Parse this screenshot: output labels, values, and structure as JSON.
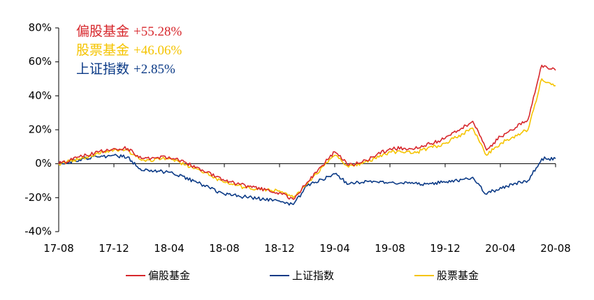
{
  "chart_data": {
    "type": "line",
    "x_ticks": [
      "17-08",
      "17-12",
      "18-04",
      "18-08",
      "18-12",
      "19-04",
      "19-08",
      "19-12",
      "20-04",
      "20-08"
    ],
    "y_ticks": [
      "80%",
      "60%",
      "40%",
      "20%",
      "0%",
      "-20%",
      "-40%"
    ],
    "ylim": [
      -40,
      80
    ],
    "y_unit": "%",
    "x": [
      "17-08",
      "17-10",
      "17-12",
      "18-01",
      "18-02",
      "18-04",
      "18-06",
      "18-08",
      "18-10",
      "18-12",
      "19-01",
      "19-02",
      "19-04",
      "19-05",
      "19-06",
      "19-08",
      "19-10",
      "19-12",
      "20-02",
      "20-03",
      "20-04",
      "20-06",
      "20-07",
      "20-08"
    ],
    "series": [
      {
        "name": "偏股基金",
        "color": "#d7282d",
        "values": [
          0,
          5,
          9,
          9,
          3,
          4,
          -2,
          -10,
          -14,
          -17,
          -21,
          -11,
          7,
          -1,
          1,
          9,
          9,
          15,
          25,
          8,
          16,
          26,
          58,
          55
        ]
      },
      {
        "name": "上证指数",
        "color": "#0b3a86",
        "values": [
          0,
          3,
          5,
          4,
          -4,
          -5,
          -11,
          -18,
          -20,
          -22,
          -24,
          -13,
          -6,
          -12,
          -11,
          -11,
          -12,
          -11,
          -8,
          -18,
          -14,
          -10,
          3,
          3
        ]
      },
      {
        "name": "股票基金",
        "color": "#f5c400",
        "values": [
          0,
          4,
          8,
          8,
          2,
          3,
          -3,
          -11,
          -15,
          -16,
          -20,
          -12,
          5,
          -2,
          0,
          7,
          7,
          12,
          21,
          5,
          12,
          20,
          50,
          46
        ]
      }
    ],
    "annotations": [
      {
        "name": "偏股基金",
        "value": "+55.28%",
        "color": "#d7282d"
      },
      {
        "name": "股票基金",
        "value": "+46.06%",
        "color": "#f5c400"
      },
      {
        "name": "上证指数",
        "value": "+2.85%",
        "color": "#0b3a86"
      }
    ],
    "legend": [
      {
        "name": "偏股基金",
        "color": "#d7282d"
      },
      {
        "name": "上证指数",
        "color": "#0b3a86"
      },
      {
        "name": "股票基金",
        "color": "#f5c400"
      }
    ],
    "legend_position": "bottom",
    "grid": false
  }
}
